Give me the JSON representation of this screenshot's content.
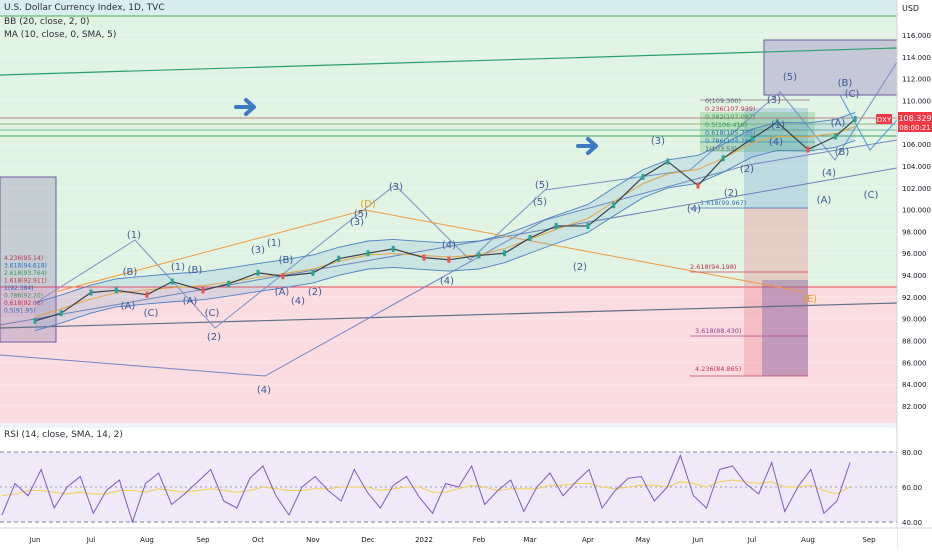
{
  "header": {
    "title": "U.S. Dollar Currency Index, 1D, TVC",
    "bb_indicator": "BB (20, close, 2, 0)",
    "ma_indicator": "MA (10, close, 0, SMA, 5)",
    "rsi_indicator": "RSI (14, close, SMA, 14, 2)"
  },
  "chart_data": [
    {
      "type": "line",
      "title": "U.S. Dollar Currency Index, 1D, TVC",
      "currency_label": "USD",
      "x_axis_labels": [
        "Jun",
        "Jul",
        "Aug",
        "Sep",
        "Oct",
        "Nov",
        "Dec",
        "2022",
        "Feb",
        "Mar",
        "Apr",
        "May",
        "Jun",
        "Jul",
        "Aug",
        "Sep"
      ],
      "y_tick_labels": [
        "82.000",
        "84.000",
        "86.000",
        "88.000",
        "90.000",
        "92.000",
        "94.000",
        "96.000",
        "98.000",
        "100.000",
        "102.000",
        "104.000",
        "106.000",
        "108.000",
        "110.000",
        "112.000",
        "114.000",
        "116.000"
      ],
      "ylim": [
        80.5,
        117.5
      ],
      "series": [
        {
          "name": "DXY",
          "x": [
            "2021-06-01",
            "2021-06-15",
            "2021-07-01",
            "2021-07-15",
            "2021-08-01",
            "2021-08-15",
            "2021-09-01",
            "2021-09-15",
            "2021-10-01",
            "2021-10-15",
            "2021-11-01",
            "2021-11-15",
            "2021-12-01",
            "2021-12-15",
            "2022-01-01",
            "2022-01-15",
            "2022-02-01",
            "2022-02-15",
            "2022-03-01",
            "2022-03-15",
            "2022-04-01",
            "2022-04-15",
            "2022-05-01",
            "2022-05-15",
            "2022-06-01",
            "2022-06-15",
            "2022-07-01",
            "2022-07-15",
            "2022-08-01",
            "2022-08-15",
            "2022-08-25"
          ],
          "values": [
            89.8,
            90.5,
            92.4,
            92.6,
            92.2,
            93.4,
            92.6,
            93.2,
            94.2,
            93.9,
            94.2,
            95.5,
            96.0,
            96.4,
            95.6,
            95.4,
            95.8,
            96.0,
            97.4,
            98.5,
            98.5,
            100.4,
            103.0,
            104.4,
            102.2,
            104.7,
            106.5,
            108.0,
            105.5,
            106.7,
            108.3
          ]
        }
      ],
      "last_value_label": "DXY",
      "last_value": "108.329",
      "countdown": "08:00:21",
      "fib_labels_top": [
        "0(109.300)",
        "0.236(107.939)",
        "0.382(107.097)",
        "0.5(106.416)",
        "0.618(105.735)",
        "0.786(104.766)",
        "1(103.53)"
      ],
      "fib_labels_ext": [
        "1.618(99.967)",
        "2.618(94.198)",
        "3.618(88.430)",
        "4.236(84.865)"
      ],
      "fib_labels_left": [
        "4.236(95.14)",
        "3.618(94.618)",
        "2.618(93.764)",
        "1.618(92.911)",
        "1(92.384)",
        "0.786(92.20)",
        "0.618(92.06)",
        "0.5(91.95)"
      ],
      "wave_labels": [
        "(1)",
        "(2)",
        "(3)",
        "(4)",
        "(5)",
        "(A)",
        "(B)",
        "(C)",
        "(D)",
        "(E)"
      ]
    },
    {
      "type": "line",
      "title": "RSI (14, close, SMA, 14, 2)",
      "y_tick_labels": [
        "40.00",
        "60.00",
        "80.00"
      ],
      "ylim": [
        28,
        84
      ],
      "series": [
        {
          "name": "RSI",
          "values": [
            44,
            62,
            55,
            70,
            48,
            60,
            66,
            45,
            58,
            64,
            40,
            62,
            68,
            50,
            56,
            63,
            70,
            52,
            48,
            65,
            72,
            55,
            44,
            60,
            66,
            58,
            52,
            70,
            57,
            48,
            61,
            66,
            54,
            45,
            62,
            60,
            72,
            50,
            58,
            64,
            46,
            60,
            68,
            55,
            63,
            70,
            48,
            58,
            65,
            66,
            52,
            60,
            78,
            55,
            48,
            70,
            72,
            62,
            56,
            74,
            46,
            60,
            70,
            45,
            52,
            74
          ]
        },
        {
          "name": "RSI-based MA",
          "values": [
            55,
            56,
            58,
            58,
            57,
            56,
            57,
            56,
            56,
            58,
            58,
            57,
            59,
            58,
            57,
            58,
            59,
            58,
            57,
            58,
            60,
            59,
            58,
            58,
            59,
            59,
            60,
            60,
            60,
            58,
            59,
            60,
            60,
            57,
            57,
            59,
            61,
            60,
            58,
            59,
            59,
            59,
            61,
            61,
            62,
            62,
            60,
            59,
            60,
            61,
            61,
            60,
            63,
            62,
            60,
            63,
            64,
            63,
            62,
            63,
            60,
            60,
            61,
            58,
            56,
            60
          ]
        }
      ]
    }
  ]
}
